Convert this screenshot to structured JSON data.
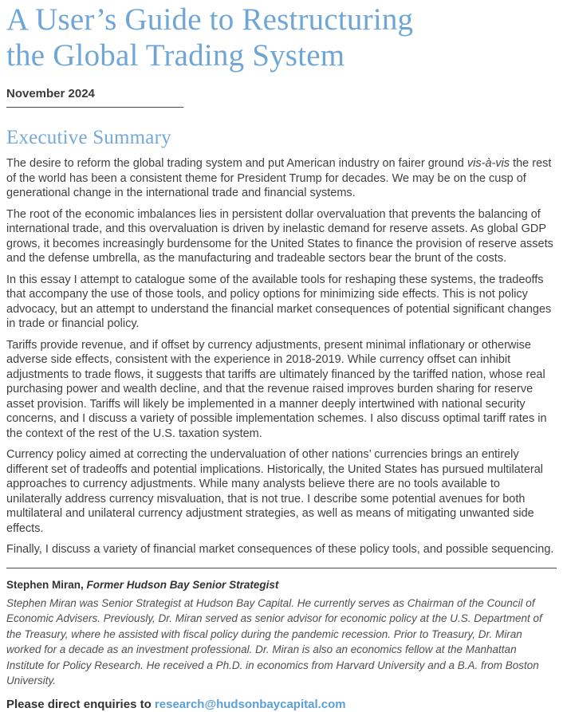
{
  "colors": {
    "accent_blue": "#6FA6D6",
    "heading_blue": "#74A9D9",
    "link_blue": "#5C9FD6",
    "body_text": "#3F3F3F",
    "rule_gray": "#4A4A4A"
  },
  "header": {
    "title_lines": [
      "A User’s Guide to Restructuring",
      "the Global Trading System"
    ],
    "date": "November 2024"
  },
  "summary": {
    "heading": "Executive Summary",
    "p1": {
      "before": "The desire to reform the global trading system and put American industry on fairer ground ",
      "italic": "vis-à-vis",
      "after": " the rest of the world has been a consistent theme for President Trump for decades. We may be on the cusp of generational change in the international trade and financial systems."
    },
    "p2": "The root of the economic imbalances lies in persistent dollar overvaluation that prevents the balancing of international trade, and this overvaluation is driven by inelastic demand for reserve assets. As global GDP grows, it becomes increasingly burdensome for the United States to finance the provision of reserve assets and the defense umbrella, as the manufacturing and tradeable sectors bear the brunt of the costs.",
    "p3": "In this essay I attempt to catalogue some of the available tools for reshaping these systems, the tradeoffs that accompany the use of those tools, and policy options for minimizing side effects. This is not policy advocacy, but an attempt to understand the financial market consequences of potential significant changes in trade or financial policy.",
    "p4": "Tariffs provide revenue, and if offset by currency adjustments, present minimal inflationary or otherwise adverse side effects, consistent with the experience in 2018-2019. While currency offset can inhibit adjustments to trade flows, it suggests that tariffs are ultimately financed by the tariffed nation, whose real purchasing power and wealth decline, and that the revenue raised improves burden sharing for reserve asset provision. Tariffs will likely be implemented in a manner deeply intertwined with national security concerns, and I discuss a variety of possible implementation schemes. I also discuss optimal tariff rates in the context of the rest of the U.S. taxation system.",
    "p5": "Currency policy aimed at correcting the undervaluation of other nations’ currencies brings an entirely different set of tradeoffs and potential implications. Historically, the United States has pursued multilateral approaches to currency adjustments. While many analysts believe there are no tools available to unilaterally address currency misvaluation, that is not true. I describe some potential avenues for both multilateral and unilateral currency adjustment strategies, as well as means of mitigating unwanted side effects.",
    "p6": "Finally, I discuss a variety of financial market consequences of these policy tools, and possible sequencing."
  },
  "author": {
    "name": "Stephen Miran,",
    "role": "Former Hudson Bay Senior Strategist",
    "bio": "Stephen Miran was Senior Strategist at Hudson Bay Capital. He currently serves as Chairman of the Council of Economic Advisers. Previously, Dr. Miran served as senior advisor for economic policy at the U.S. Department of the Treasury, where he assisted with fiscal policy during the pandemic recession. Prior to Treasury, Dr. Miran worked for a decade as an investment professional. Dr. Miran is also an economics fellow at the Manhattan Institute for Policy Research. He received a Ph.D. in economics from Harvard University and a B.A. from Boston University."
  },
  "contact": {
    "label": "Please direct enquiries to",
    "email": "research@hudsonbaycapital.com"
  }
}
